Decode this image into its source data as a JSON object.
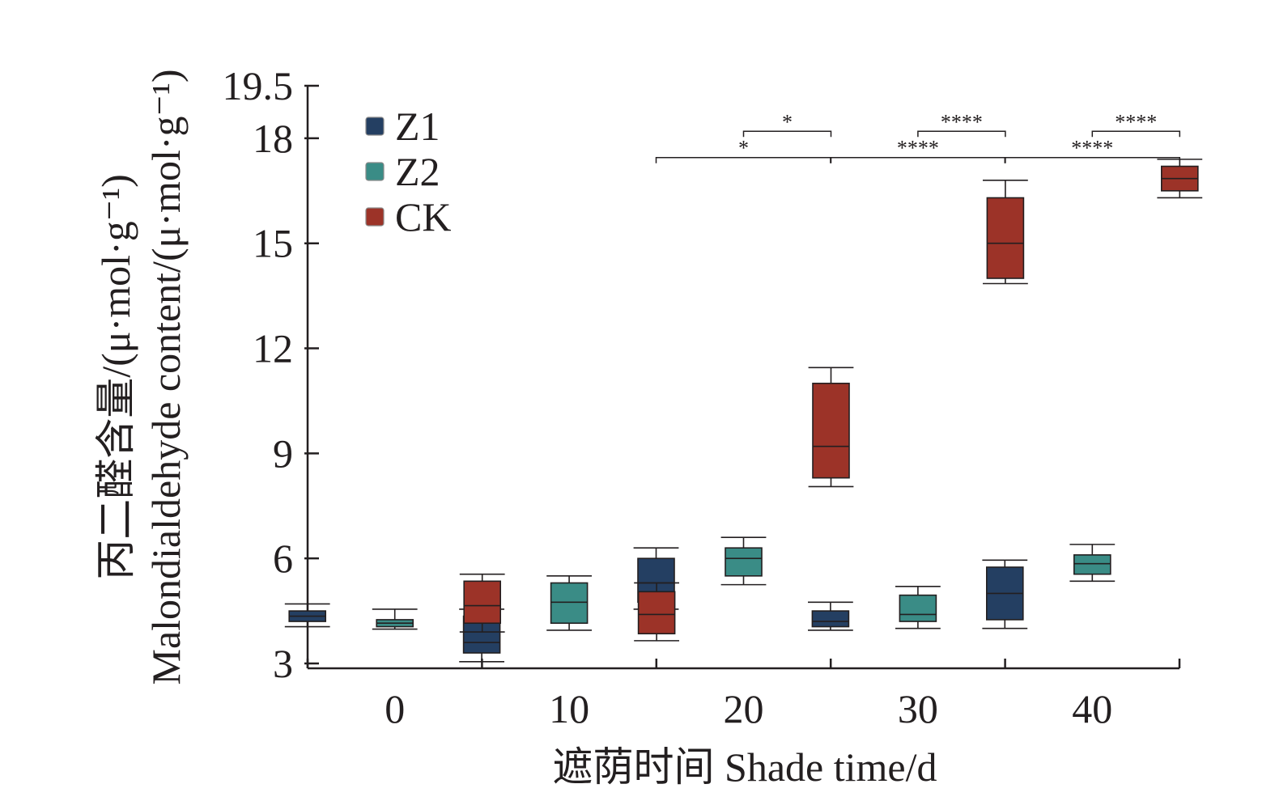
{
  "chart_data": {
    "type": "box",
    "title": "",
    "xlabel": "遮荫时间 Shade time/d",
    "ylabel_cn": "丙二醛含量/(μ·mol·g⁻¹)",
    "ylabel_en": "Malondialdehyde content/(μ·mol·g⁻¹)",
    "categories": [
      "0",
      "10",
      "20",
      "30",
      "40"
    ],
    "yticks": [
      "3",
      "6",
      "9",
      "12",
      "15",
      "18",
      "19.5"
    ],
    "ylim": [
      3,
      19.5
    ],
    "legend_position": "top-left",
    "series": [
      {
        "name": "Z1",
        "color": "#243f62",
        "boxes": [
          {
            "x": "0",
            "min": 4.05,
            "q1": 4.2,
            "median": 4.35,
            "q3": 4.5,
            "max": 4.7
          },
          {
            "x": "10",
            "min": 3.05,
            "q1": 3.3,
            "median": 3.6,
            "q3": 4.35,
            "max": 4.55
          },
          {
            "x": "20",
            "min": 4.55,
            "q1": 4.75,
            "median": 5.3,
            "q3": 6.0,
            "max": 6.3
          },
          {
            "x": "30",
            "min": 3.95,
            "q1": 4.05,
            "median": 4.2,
            "q3": 4.5,
            "max": 4.75
          },
          {
            "x": "40",
            "min": 4.0,
            "q1": 4.25,
            "median": 5.0,
            "q3": 5.75,
            "max": 5.95
          }
        ]
      },
      {
        "name": "Z2",
        "color": "#3a8c86",
        "boxes": [
          {
            "x": "0",
            "min": 3.98,
            "q1": 4.05,
            "median": 4.15,
            "q3": 4.25,
            "max": 4.55
          },
          {
            "x": "10",
            "min": 3.95,
            "q1": 4.15,
            "median": 4.75,
            "q3": 5.3,
            "max": 5.5
          },
          {
            "x": "20",
            "min": 5.25,
            "q1": 5.5,
            "median": 6.0,
            "q3": 6.3,
            "max": 6.6
          },
          {
            "x": "30",
            "min": 4.0,
            "q1": 4.2,
            "median": 4.4,
            "q3": 4.95,
            "max": 5.2
          },
          {
            "x": "40",
            "min": 5.35,
            "q1": 5.55,
            "median": 5.85,
            "q3": 6.1,
            "max": 6.4
          }
        ]
      },
      {
        "name": "CK",
        "color": "#9c3328",
        "boxes": [
          {
            "x": "0",
            "min": 3.9,
            "q1": 4.15,
            "median": 4.65,
            "q3": 5.35,
            "max": 5.55
          },
          {
            "x": "10",
            "min": 3.65,
            "q1": 3.85,
            "median": 4.4,
            "q3": 5.05,
            "max": 5.3
          },
          {
            "x": "20",
            "min": 8.05,
            "q1": 8.3,
            "median": 9.2,
            "q3": 11.0,
            "max": 11.45
          },
          {
            "x": "30",
            "min": 13.85,
            "q1": 14.0,
            "median": 15.0,
            "q3": 16.3,
            "max": 16.8
          },
          {
            "x": "40",
            "min": 16.3,
            "q1": 16.5,
            "median": 16.85,
            "q3": 17.2,
            "max": 17.4
          }
        ]
      }
    ],
    "significance": [
      {
        "x": "20",
        "from": "Z1",
        "to": "CK",
        "label": "*"
      },
      {
        "x": "20",
        "from": "Z2",
        "to": "CK",
        "label": "*"
      },
      {
        "x": "30",
        "from": "Z1",
        "to": "CK",
        "label": "****"
      },
      {
        "x": "30",
        "from": "Z2",
        "to": "CK",
        "label": "****"
      },
      {
        "x": "40",
        "from": "Z1",
        "to": "CK",
        "label": "****"
      },
      {
        "x": "40",
        "from": "Z2",
        "to": "CK",
        "label": "****"
      }
    ]
  }
}
